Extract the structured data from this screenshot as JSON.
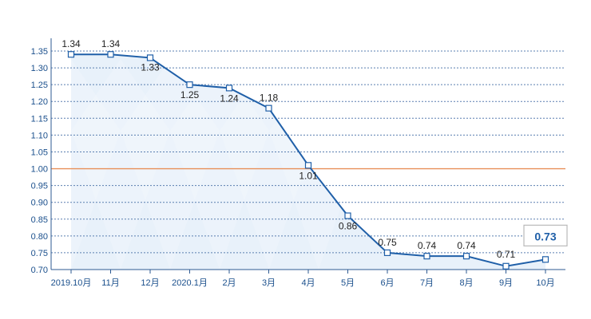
{
  "chart_data": {
    "type": "line",
    "title": "",
    "xlabel": "",
    "ylabel": "",
    "categories": [
      "2019.10月",
      "11月",
      "12月",
      "2020.1月",
      "2月",
      "3月",
      "4月",
      "5月",
      "6月",
      "7月",
      "8月",
      "9月",
      "10月"
    ],
    "values": [
      1.34,
      1.34,
      1.33,
      1.25,
      1.24,
      1.18,
      1.01,
      0.86,
      0.75,
      0.74,
      0.74,
      0.71,
      0.73
    ],
    "value_labels": [
      "1.34",
      "1.34",
      "1.33",
      "1.25",
      "1.24",
      "1.18",
      "1.01",
      "0.86",
      "0.75",
      "0.74",
      "0.74",
      "0.71",
      "0.73"
    ],
    "ylim": [
      0.7,
      1.35
    ],
    "yticks": [
      "0.70",
      "0.75",
      "0.80",
      "0.85",
      "0.90",
      "0.95",
      "1.00",
      "1.05",
      "1.10",
      "1.15",
      "1.20",
      "1.25",
      "1.30",
      "1.35"
    ],
    "reference_line": 1.0,
    "highlighted_last_point": true,
    "grid": true,
    "legend": "none",
    "colors": {
      "line": "#1f5fa8",
      "marker_fill": "#ffffff",
      "grid": "#5a7fb0",
      "reference_line": "#e8905a",
      "axis": "#2e5a92",
      "area_fill": "#d6e6f5"
    }
  }
}
